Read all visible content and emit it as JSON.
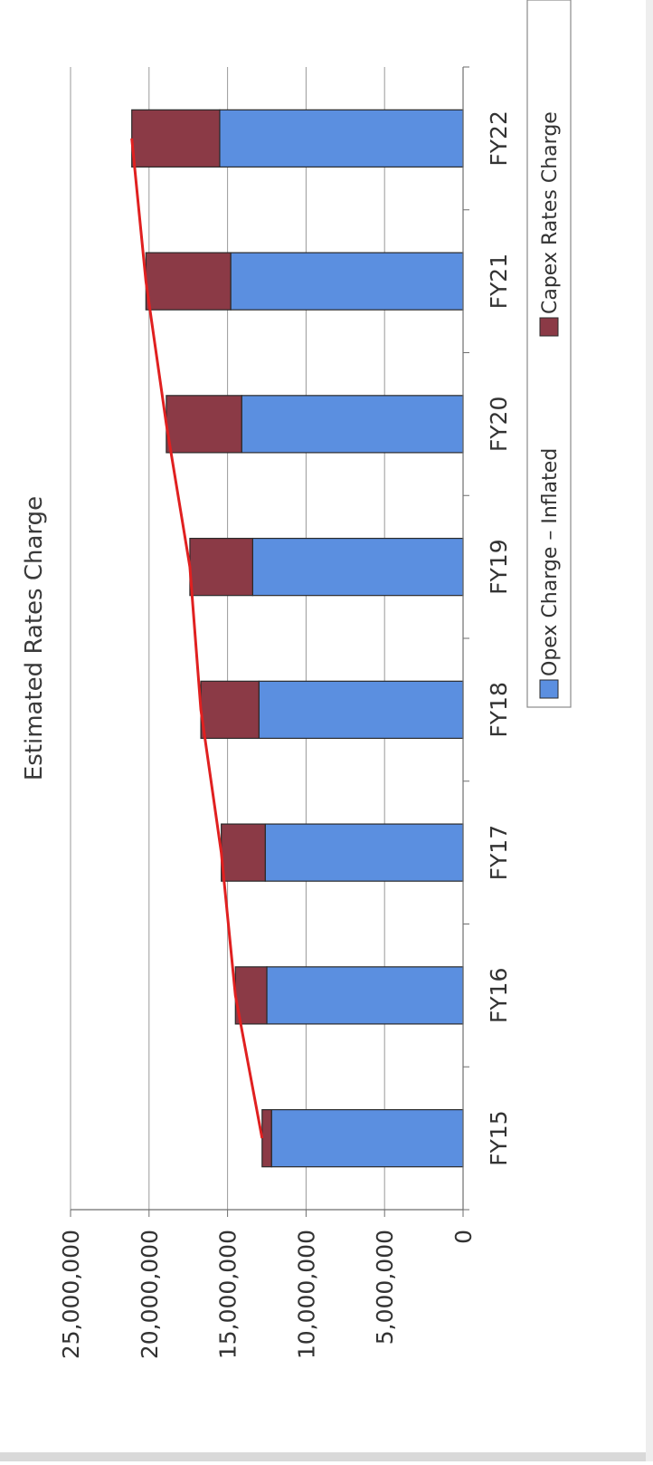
{
  "chart_data": {
    "type": "bar",
    "stacked": true,
    "orientation": "rotated-90",
    "title": "Estimated Rates Charge",
    "categories": [
      "FY15",
      "FY16",
      "FY17",
      "FY18",
      "FY19",
      "FY20",
      "FY21",
      "FY22"
    ],
    "series": [
      {
        "name": "Opex Charge – Inflated",
        "color": "#5b8fe0",
        "values": [
          12200000,
          12500000,
          12600000,
          13000000,
          13400000,
          14100000,
          14800000,
          15500000
        ]
      },
      {
        "name": "Capex Rates Charge",
        "color": "#8b3a46",
        "values": [
          600000,
          2000000,
          2800000,
          3700000,
          4000000,
          4800000,
          5400000,
          5600000
        ]
      }
    ],
    "trend_line": {
      "color": "#e02020",
      "values": [
        12800000,
        14500000,
        15400000,
        16700000,
        17400000,
        18900000,
        20200000,
        21100000
      ]
    },
    "y_ticks": [
      "0",
      "5,000,000",
      "10,000,000",
      "15,000,000",
      "20,000,000",
      "25,000,000"
    ],
    "ylim": [
      0,
      25000000
    ],
    "grid": true,
    "legend_position": "right"
  }
}
